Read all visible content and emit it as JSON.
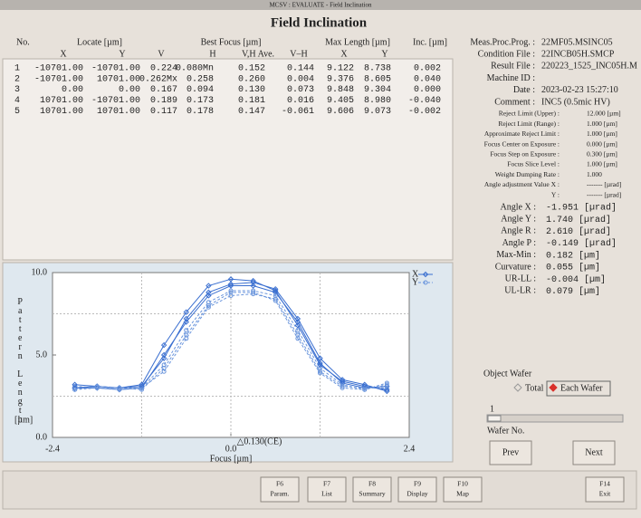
{
  "window_title": "MCSV : EVALUATE - Field Inclination",
  "title": "Field Inclination",
  "table": {
    "group_headers": [
      "No.",
      "Locate [µm]",
      "Best Focus [µm]",
      "Max Length [µm]",
      "Inc. [µm]"
    ],
    "sub_headers": [
      "X",
      "Y",
      "V",
      "H",
      "V,H Ave.",
      "V–H",
      "X",
      "Y"
    ],
    "rows": [
      [
        "1",
        "-10701.00",
        "-10701.00",
        "0.224",
        "0.080Mn",
        "0.152",
        "0.144",
        "9.122",
        "8.738",
        "0.002"
      ],
      [
        "2",
        "-10701.00",
        "10701.00",
        "0.262Mx",
        "0.258",
        "0.260",
        "0.004",
        "9.376",
        "8.605",
        "0.040"
      ],
      [
        "3",
        "0.00",
        "0.00",
        "0.167",
        "0.094",
        "0.130",
        "0.073",
        "9.848",
        "9.304",
        "0.000"
      ],
      [
        "4",
        "10701.00",
        "-10701.00",
        "0.189",
        "0.173",
        "0.181",
        "0.016",
        "9.405",
        "8.980",
        "-0.040"
      ],
      [
        "5",
        "10701.00",
        "10701.00",
        "0.117",
        "0.178",
        "0.147",
        "-0.061",
        "9.606",
        "9.073",
        "-0.002"
      ]
    ]
  },
  "info": {
    "files": [
      {
        "label": "Meas.Proc.Prog. :",
        "value": "22MF05.MSINC05"
      },
      {
        "label": "Condition File :",
        "value": "22INCB05H.SMCP"
      },
      {
        "label": "Result File :",
        "value": "220223_1525_INC05H.M"
      },
      {
        "label": "Machine ID :"
      },
      {
        "label": "Date :",
        "value": "2023-02-23 15:27:10"
      },
      {
        "label": "Comment :",
        "value": "INC5 (0.5mic HV)"
      }
    ],
    "settings": [
      {
        "label": "Reject Limit (Upper) :",
        "value": "12.000 [µm]"
      },
      {
        "label": "Reject Limit (Range) :",
        "value": "1.000 [µm]"
      },
      {
        "label": "Approximate Reject Limit :",
        "value": "1.000 [µm]"
      },
      {
        "label": "Focus Center on Exposure :",
        "value": "0.000 [µm]"
      },
      {
        "label": "Focus Step on Exposure :",
        "value": "0.300 [µm]"
      },
      {
        "label": "Focus Slice Level :",
        "value": "1.000 [µm]"
      },
      {
        "label": "Weight Dumping Rate :",
        "value": "1.000"
      },
      {
        "label": "Angle adjustment Value X :",
        "value": "------- [µrad]"
      },
      {
        "label": "Y :",
        "value": "------- [µrad]"
      }
    ],
    "results": [
      {
        "label": "Angle X :",
        "value": "-1.951 [µrad]"
      },
      {
        "label": "Angle Y :",
        "value": " 1.740 [µrad]"
      },
      {
        "label": "Angle R :",
        "value": " 2.610 [µrad]"
      },
      {
        "label": "Angle P :",
        "value": "-0.149 [µrad]"
      },
      {
        "label": "Max-Min :",
        "value": " 0.182 [µm]"
      },
      {
        "label": "Curvature :",
        "value": " 0.055 [µm]"
      },
      {
        "label": "UR-LL :",
        "value": "-0.004 [µm]"
      },
      {
        "label": "UL-LR :",
        "value": " 0.079 [µm]"
      }
    ]
  },
  "wafer": {
    "title": "Object Wafer",
    "options": [
      "Total",
      "Each Wafer"
    ],
    "selected": 1,
    "number": "1",
    "number_label": "Wafer No.",
    "prev": "Prev",
    "next": "Next"
  },
  "function_keys": [
    {
      "key": "F6",
      "label": "Param."
    },
    {
      "key": "F7",
      "label": "List"
    },
    {
      "key": "F8",
      "label": "Summary"
    },
    {
      "key": "F9",
      "label": "Display"
    },
    {
      "key": "F10",
      "label": "Map"
    },
    {
      "key": "F14",
      "label": "Exit"
    }
  ],
  "chart_data": {
    "type": "line",
    "ylabel": "Pattern Length",
    "yunit": "[µm]",
    "xlabel": "Focus [µm]",
    "annotation": {
      "text": "△0.130(CE)",
      "x": 0.13
    },
    "xlim": [
      -2.4,
      2.4
    ],
    "xticks": [
      {
        "value": -2.4,
        "label": "-2.4"
      },
      {
        "value": 0,
        "label": "0.0"
      },
      {
        "value": 2.4,
        "label": "2.4"
      }
    ],
    "ylim": [
      0,
      10
    ],
    "yticks": [
      {
        "value": 0,
        "label": "0.0"
      },
      {
        "value": 5,
        "label": "5.0"
      },
      {
        "value": 10,
        "label": "10.0"
      }
    ],
    "xgrid": [
      -1.2,
      1.2
    ],
    "ygrid": [
      2.5,
      7.5
    ],
    "grid": true,
    "x": [
      -2.1,
      -1.8,
      -1.5,
      -1.2,
      -0.9,
      -0.6,
      -0.3,
      0,
      0.3,
      0.6,
      0.9,
      1.2,
      1.5,
      1.8,
      2.1
    ],
    "series": [
      {
        "name": "X",
        "color": "#3a6fd0",
        "values": [
          3.0,
          3.0,
          2.9,
          3.0,
          5.0,
          7.0,
          8.6,
          9.2,
          9.2,
          8.8,
          7.0,
          4.5,
          3.3,
          3.0,
          3.1
        ]
      },
      {
        "name": "Y",
        "color": "#6a95dc",
        "values": [
          3.1,
          3.0,
          2.9,
          3.0,
          4.4,
          6.5,
          8.2,
          8.9,
          8.9,
          8.6,
          6.5,
          4.2,
          3.2,
          2.9,
          3.2
        ]
      },
      {
        "name": "X",
        "color": "#3a6fd0",
        "values": [
          3.0,
          3.1,
          3.0,
          3.2,
          5.6,
          7.6,
          9.2,
          9.6,
          9.5,
          8.9,
          6.8,
          4.4,
          3.4,
          3.1,
          2.9
        ]
      },
      {
        "name": "Y",
        "color": "#6a95dc",
        "values": [
          2.9,
          3.0,
          3.0,
          3.0,
          4.0,
          6.0,
          7.9,
          8.6,
          8.7,
          8.4,
          6.2,
          4.0,
          3.1,
          3.0,
          3.0
        ]
      },
      {
        "name": "X",
        "color": "#3a6fd0",
        "values": [
          3.2,
          3.1,
          3.0,
          3.1,
          4.8,
          7.2,
          8.8,
          9.3,
          9.4,
          9.0,
          7.2,
          4.8,
          3.5,
          3.2,
          2.8
        ]
      },
      {
        "name": "Y",
        "color": "#6a95dc",
        "values": [
          2.9,
          3.1,
          3.0,
          2.9,
          4.2,
          6.2,
          8.0,
          8.8,
          8.8,
          8.3,
          6.0,
          3.9,
          3.0,
          2.9,
          3.3
        ]
      }
    ]
  }
}
